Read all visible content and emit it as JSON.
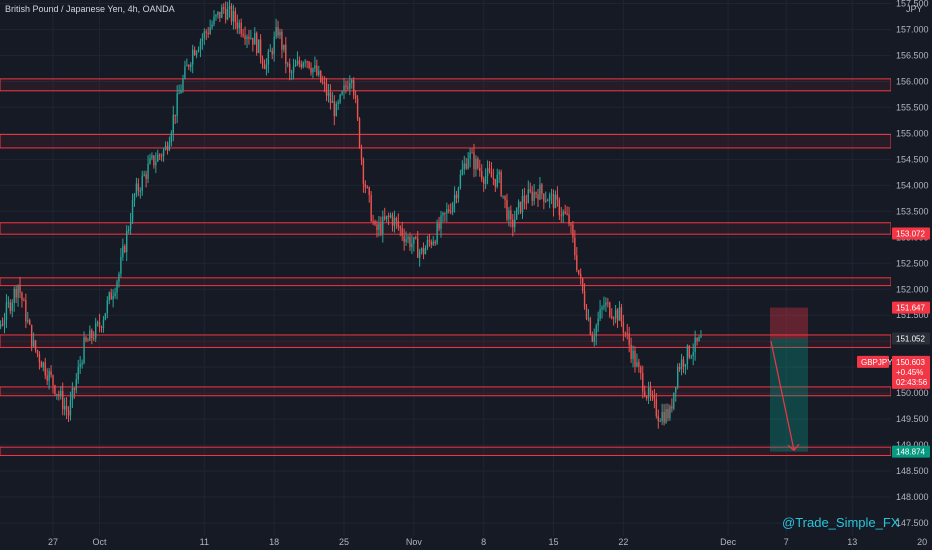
{
  "header": {
    "title": "British Pound / Japanese Yen, 4h, OANDA",
    "currency_top": "JPY"
  },
  "watermark": "@Trade_Simple_FX",
  "colors": {
    "background": "#161a25",
    "grid": "#1f2433",
    "up": "#26a69a",
    "down": "#ef5350",
    "zone_line": "#f23645",
    "axis_text": "#b2b5be",
    "badge_red": "#f23645",
    "badge_green": "#089981"
  },
  "chart_data": {
    "type": "candlestick",
    "symbol": "GBPJPY",
    "ylim": [
      147.3,
      157.7
    ],
    "y_ticks": [
      "157.500",
      "157.000",
      "156.500",
      "156.000",
      "155.500",
      "155.000",
      "154.500",
      "154.000",
      "153.500",
      "153.000",
      "152.500",
      "152.000",
      "151.500",
      "151.000",
      "150.500",
      "150.000",
      "149.500",
      "149.000",
      "148.500",
      "148.000",
      "147.500"
    ],
    "x_ticks": [
      {
        "label": "27",
        "idx": 0
      },
      {
        "label": "Oct",
        "idx": 24
      },
      {
        "label": "11",
        "idx": 78
      },
      {
        "label": "18",
        "idx": 114
      },
      {
        "label": "25",
        "idx": 150
      },
      {
        "label": "Nov",
        "idx": 186
      },
      {
        "label": "8",
        "idx": 222
      },
      {
        "label": "15",
        "idx": 258
      },
      {
        "label": "22",
        "idx": 294
      },
      {
        "label": "Dec",
        "idx": 348
      },
      {
        "label": "7",
        "idx": 378
      },
      {
        "label": "13",
        "idx": 412
      },
      {
        "label": "20",
        "idx": 448
      }
    ],
    "path": [
      [
        0,
        149.6
      ],
      [
        6,
        149.1
      ],
      [
        14,
        150.8
      ],
      [
        24,
        151.4
      ],
      [
        32,
        152.1
      ],
      [
        40,
        150.9
      ],
      [
        50,
        150.2
      ],
      [
        58,
        149.6
      ],
      [
        66,
        150.9
      ],
      [
        74,
        151.3
      ],
      [
        84,
        152.3
      ],
      [
        92,
        153.8
      ],
      [
        100,
        154.4
      ],
      [
        108,
        154.7
      ],
      [
        116,
        155.9
      ],
      [
        122,
        156.6
      ],
      [
        130,
        157.0
      ],
      [
        138,
        157.4
      ],
      [
        146,
        157.1
      ],
      [
        154,
        156.8
      ],
      [
        160,
        156.3
      ],
      [
        166,
        157.0
      ],
      [
        172,
        156.1
      ],
      [
        180,
        156.5
      ],
      [
        188,
        156.0
      ],
      [
        196,
        155.4
      ],
      [
        204,
        156.2
      ],
      [
        210,
        154.2
      ],
      [
        216,
        153.1
      ],
      [
        224,
        153.4
      ],
      [
        232,
        153.0
      ],
      [
        240,
        152.7
      ],
      [
        248,
        153.1
      ],
      [
        256,
        153.7
      ],
      [
        264,
        154.6
      ],
      [
        272,
        154.2
      ],
      [
        280,
        154.1
      ],
      [
        286,
        153.2
      ],
      [
        292,
        153.7
      ],
      [
        300,
        153.9
      ],
      [
        308,
        153.7
      ],
      [
        316,
        153.3
      ],
      [
        322,
        152.1
      ],
      [
        328,
        151.1
      ],
      [
        334,
        151.7
      ],
      [
        342,
        151.5
      ],
      [
        350,
        150.6
      ],
      [
        356,
        150.0
      ],
      [
        362,
        149.6
      ],
      [
        368,
        149.6
      ],
      [
        372,
        150.5
      ],
      [
        378,
        150.8
      ],
      [
        384,
        151.0
      ]
    ],
    "zones": [
      {
        "top": 156.05,
        "bottom": 155.82
      },
      {
        "top": 154.98,
        "bottom": 154.72
      },
      {
        "top": 153.28,
        "bottom": 153.06
      },
      {
        "top": 152.22,
        "bottom": 152.07
      },
      {
        "top": 151.12,
        "bottom": 150.88
      },
      {
        "top": 150.12,
        "bottom": 149.95
      },
      {
        "top": 148.96,
        "bottom": 148.8
      }
    ],
    "position": {
      "type": "short",
      "stop": 151.647,
      "entry": 151.052,
      "target": 148.874
    },
    "projection": {
      "from_idx": 384,
      "from": 151.0,
      "to_idx": 396,
      "to": 148.9
    },
    "price_badges": [
      {
        "text": "153.072",
        "value": 153.072,
        "color": "#f23645"
      },
      {
        "text": "151.647",
        "value": 151.647,
        "color": "#f23645"
      },
      {
        "text": "151.052",
        "value": 151.052,
        "color": "#2a2e39"
      },
      {
        "text": "148.874",
        "value": 148.874,
        "color": "#089981"
      }
    ],
    "current_price": {
      "symbol": "GBPJPY",
      "price": "150.603",
      "change": "+0.45%",
      "countdown": "02:43:56",
      "value": 150.603
    }
  }
}
